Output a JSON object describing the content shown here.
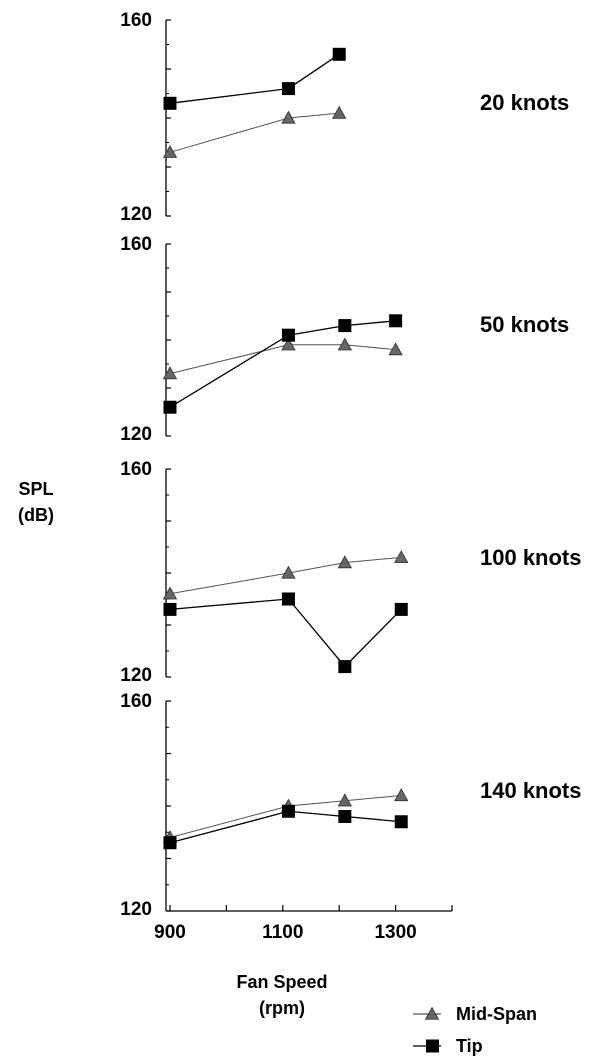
{
  "chart_data": {
    "type": "line",
    "ylabel": "SPL",
    "ylabel_unit": "(dB)",
    "xlabel": "Fan Speed",
    "xlabel_unit": "(rpm)",
    "x_tick_labels": [
      "900",
      "1100",
      "1300"
    ],
    "xlim": [
      900,
      1400
    ],
    "panels": [
      {
        "label": "20 knots",
        "ylim": [
          120,
          160
        ],
        "y_tick_labels": [
          "160",
          "120"
        ],
        "series": [
          {
            "name": "Mid-Span",
            "x": [
              900,
              1110,
              1200
            ],
            "y": [
              133,
              140,
              141
            ]
          },
          {
            "name": "Tip",
            "x": [
              900,
              1110,
              1200
            ],
            "y": [
              143,
              146,
              153
            ]
          }
        ]
      },
      {
        "label": "50 knots",
        "ylim": [
          120,
          160
        ],
        "y_tick_labels": [
          "160",
          "120"
        ],
        "series": [
          {
            "name": "Mid-Span",
            "x": [
              900,
              1110,
              1210,
              1300
            ],
            "y": [
              133,
              139,
              139,
              138
            ]
          },
          {
            "name": "Tip",
            "x": [
              900,
              1110,
              1210,
              1300
            ],
            "y": [
              126,
              141,
              143,
              144
            ]
          }
        ]
      },
      {
        "label": "100 knots",
        "ylim": [
          120,
          160
        ],
        "y_tick_labels": [
          "160",
          "120"
        ],
        "series": [
          {
            "name": "Mid-Span",
            "x": [
              900,
              1110,
              1210,
              1310
            ],
            "y": [
              136,
              140,
              142,
              143
            ]
          },
          {
            "name": "Tip",
            "x": [
              900,
              1110,
              1210,
              1310
            ],
            "y": [
              133,
              135,
              122,
              133
            ]
          }
        ]
      },
      {
        "label": "140 knots",
        "ylim": [
          120,
          160
        ],
        "y_tick_labels": [
          "160",
          "120"
        ],
        "series": [
          {
            "name": "Mid-Span",
            "x": [
              900,
              1110,
              1210,
              1310
            ],
            "y": [
              134,
              140,
              141,
              142
            ]
          },
          {
            "name": "Tip",
            "x": [
              900,
              1110,
              1210,
              1310
            ],
            "y": [
              133,
              139,
              138,
              137
            ]
          }
        ]
      }
    ],
    "legend": [
      {
        "name": "Mid-Span",
        "marker": "triangle"
      },
      {
        "name": "Tip",
        "marker": "square"
      }
    ],
    "legend_position": "bottom-right",
    "colors": {
      "mid_span": "#666666",
      "tip": "#000000",
      "axis": "#000000"
    }
  }
}
